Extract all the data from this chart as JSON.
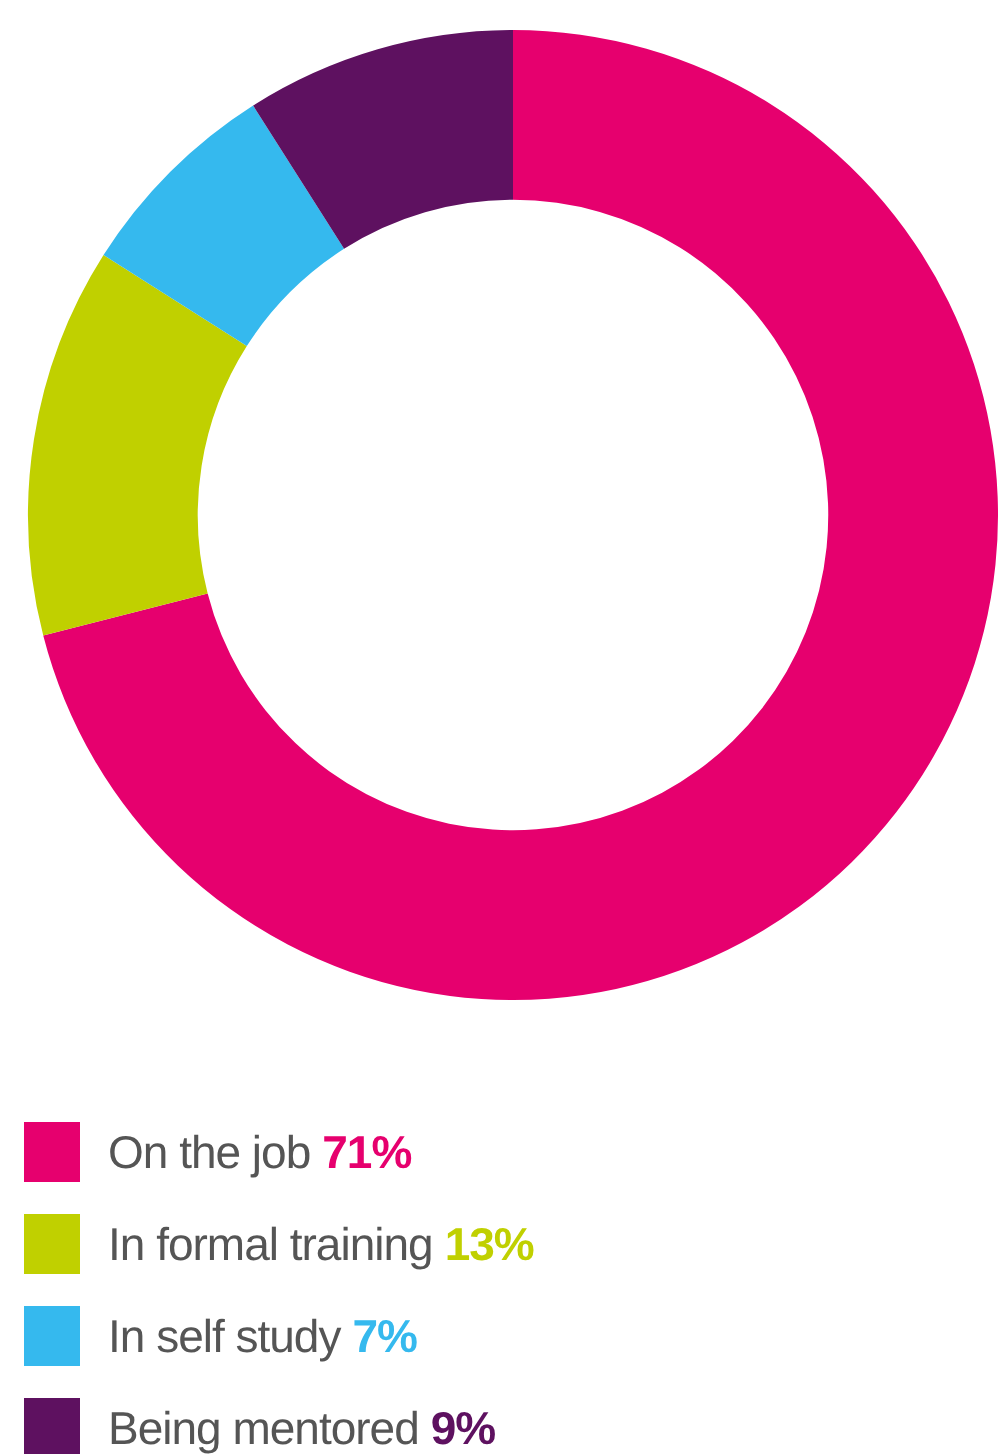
{
  "chart_data": {
    "type": "donut",
    "categories": [
      "On the job",
      "In formal training",
      "In self study",
      "Being mentored"
    ],
    "values": [
      71,
      13,
      7,
      9
    ],
    "colors": [
      "#e6006e",
      "#c0d000",
      "#35b9ee",
      "#5e1160"
    ],
    "value_labels": [
      "71%",
      "13%",
      "7%",
      "9%"
    ],
    "legend": "bottom"
  }
}
